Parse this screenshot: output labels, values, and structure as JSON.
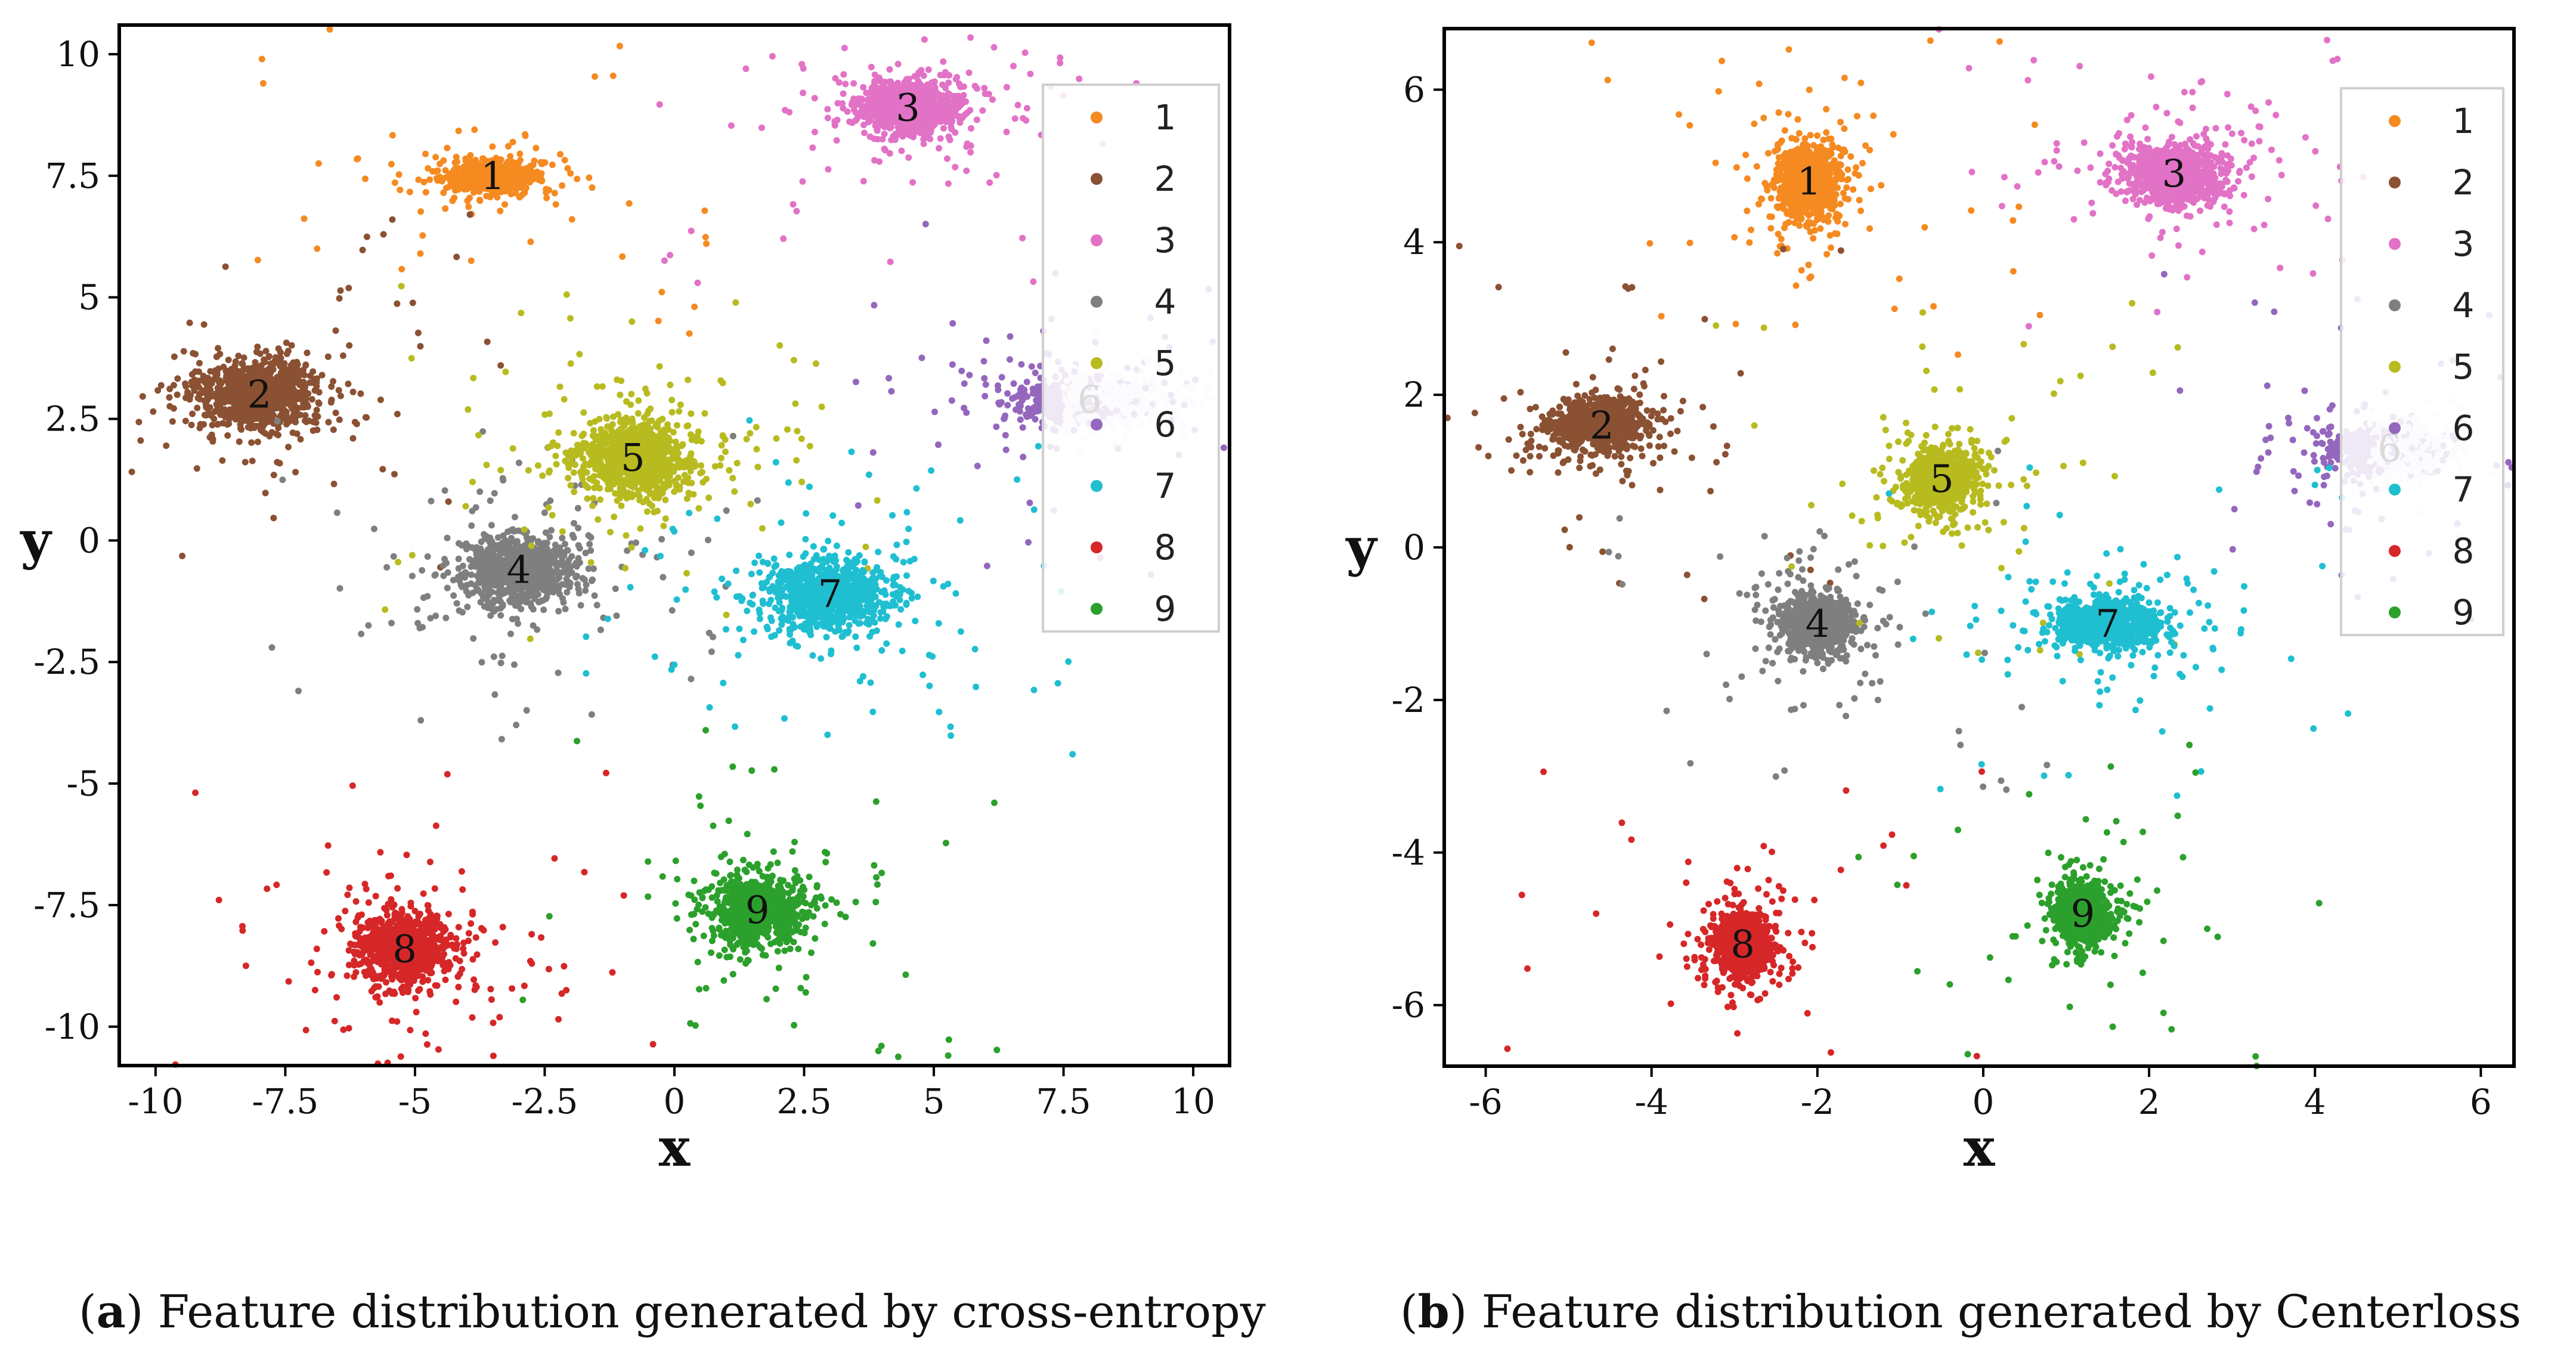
{
  "colors": {
    "1": "#f58a21",
    "2": "#8b5133",
    "3": "#e272c6",
    "4": "#7f7f7f",
    "5": "#b8bb1f",
    "6": "#9467bd",
    "6b": "#e8e0f2",
    "7": "#1fbfd1",
    "8": "#d62728",
    "9": "#2ca02c"
  },
  "captions": {
    "a": {
      "letter": "a",
      "text": " Feature distribution generated by cross-entropy"
    },
    "b": {
      "letter": "b",
      "text": " Feature distribution generated by Centerloss"
    }
  },
  "chart_data": [
    {
      "type": "scatter",
      "xlabel": "x",
      "ylabel": "y",
      "xlim": [
        -10.7,
        10.7
      ],
      "ylim": [
        -10.8,
        10.6
      ],
      "xticks": [
        -10,
        -7.5,
        -5,
        -2.5,
        0,
        2.5,
        5,
        7.5,
        10
      ],
      "xtick_labels": [
        "-10",
        "-7.5",
        "-5",
        "-2.5",
        "0",
        "2.5",
        "5",
        "7.5",
        "10"
      ],
      "yticks": [
        10,
        7.5,
        5,
        2.5,
        0,
        -2.5,
        -5,
        -7.5,
        -10
      ],
      "ytick_labels": [
        "10",
        "7.5",
        "5",
        "2.5",
        "0",
        "-2.5",
        "-5",
        "-7.5",
        "-10"
      ],
      "grid": false,
      "legend_position": "top-right",
      "legend": [
        "1",
        "2",
        "3",
        "4",
        "5",
        "6",
        "7",
        "8",
        "9"
      ],
      "clusters": [
        {
          "label": "1",
          "center": [
            -3.5,
            7.5
          ],
          "spread": [
            0.9,
            0.4
          ]
        },
        {
          "label": "2",
          "center": [
            -8.0,
            3.0
          ],
          "spread": [
            1.5,
            0.9
          ]
        },
        {
          "label": "3",
          "center": [
            4.5,
            8.9
          ],
          "spread": [
            1.3,
            0.7
          ]
        },
        {
          "label": "4",
          "center": [
            -3.0,
            -0.6
          ],
          "spread": [
            1.4,
            0.9
          ]
        },
        {
          "label": "5",
          "center": [
            -0.8,
            1.7
          ],
          "spread": [
            1.4,
            1.0
          ]
        },
        {
          "label": "6",
          "center": [
            8.0,
            2.9
          ],
          "spread": [
            1.7,
            0.6
          ]
        },
        {
          "label": "7",
          "center": [
            3.0,
            -1.1
          ],
          "spread": [
            1.6,
            1.0
          ]
        },
        {
          "label": "8",
          "center": [
            -5.2,
            -8.4
          ],
          "spread": [
            1.2,
            1.0
          ]
        },
        {
          "label": "9",
          "center": [
            1.6,
            -7.6
          ],
          "spread": [
            1.1,
            0.9
          ]
        }
      ]
    },
    {
      "type": "scatter",
      "xlabel": "x",
      "ylabel": "y",
      "xlim": [
        -6.5,
        6.4
      ],
      "ylim": [
        -6.8,
        6.8
      ],
      "xticks": [
        -6,
        -4,
        -2,
        0,
        2,
        4,
        6
      ],
      "xtick_labels": [
        "-6",
        "-4",
        "-2",
        "0",
        "2",
        "4",
        "6"
      ],
      "yticks": [
        6,
        4,
        2,
        0,
        -2,
        -4,
        -6
      ],
      "ytick_labels": [
        "6",
        "4",
        "2",
        "0",
        "-2",
        "-4",
        "-6"
      ],
      "grid": false,
      "legend_position": "top-right",
      "legend": [
        "1",
        "2",
        "3",
        "4",
        "5",
        "6",
        "7",
        "8",
        "9"
      ],
      "clusters": [
        {
          "label": "1",
          "center": [
            -2.1,
            4.8
          ],
          "spread": [
            0.5,
            0.6
          ]
        },
        {
          "label": "2",
          "center": [
            -4.6,
            1.6
          ],
          "spread": [
            0.7,
            0.4
          ]
        },
        {
          "label": "3",
          "center": [
            2.3,
            4.9
          ],
          "spread": [
            0.8,
            0.5
          ]
        },
        {
          "label": "4",
          "center": [
            -2.0,
            -1.0
          ],
          "spread": [
            0.5,
            0.5
          ]
        },
        {
          "label": "5",
          "center": [
            -0.5,
            0.9
          ],
          "spread": [
            0.5,
            0.5
          ]
        },
        {
          "label": "6",
          "center": [
            4.9,
            1.3
          ],
          "spread": [
            0.8,
            0.4
          ]
        },
        {
          "label": "7",
          "center": [
            1.5,
            -1.0
          ],
          "spread": [
            0.8,
            0.4
          ]
        },
        {
          "label": "8",
          "center": [
            -2.9,
            -5.2
          ],
          "spread": [
            0.4,
            0.5
          ]
        },
        {
          "label": "9",
          "center": [
            1.2,
            -4.8
          ],
          "spread": [
            0.4,
            0.5
          ]
        }
      ]
    }
  ]
}
